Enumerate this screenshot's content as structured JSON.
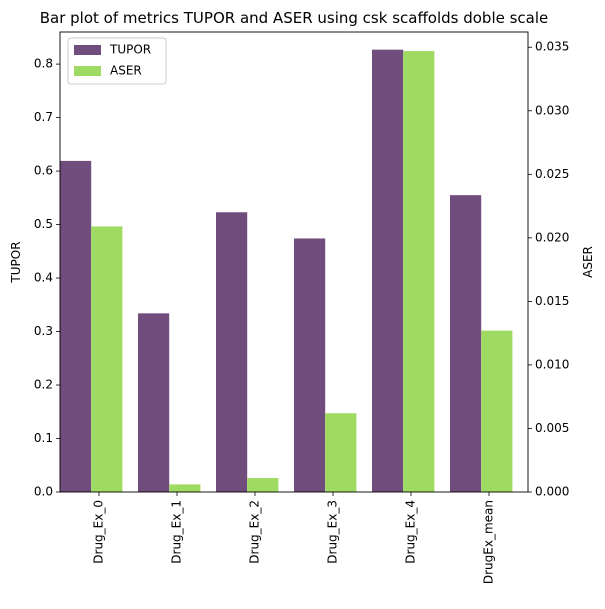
{
  "chart_data": {
    "type": "bar",
    "title": "Bar plot of metrics TUPOR and ASER using csk scaffolds doble scale",
    "categories": [
      "Drug_Ex_0",
      "Drug_Ex_1",
      "Drug_Ex_2",
      "Drug_Ex_3",
      "Drug_Ex_4",
      "DrugEx_mean"
    ],
    "series": [
      {
        "name": "TUPOR",
        "axis": "left",
        "color": "#704d7c",
        "values": [
          0.619,
          0.334,
          0.523,
          0.474,
          0.827,
          0.555
        ]
      },
      {
        "name": "ASER",
        "axis": "right",
        "color": "#9fdb63",
        "values": [
          0.0209,
          0.0006,
          0.0011,
          0.0062,
          0.0347,
          0.0127
        ]
      }
    ],
    "ylabel": "TUPOR",
    "ylabel_right": "ASER",
    "ylim": [
      0,
      0.86
    ],
    "ylim_right": [
      0,
      0.0362
    ],
    "yticks": [
      "0.0",
      "0.1",
      "0.2",
      "0.3",
      "0.4",
      "0.5",
      "0.6",
      "0.7",
      "0.8"
    ],
    "yticks_right": [
      "0.000",
      "0.005",
      "0.010",
      "0.015",
      "0.020",
      "0.025",
      "0.030",
      "0.035"
    ],
    "legend_position": "top-left",
    "grid": false
  }
}
